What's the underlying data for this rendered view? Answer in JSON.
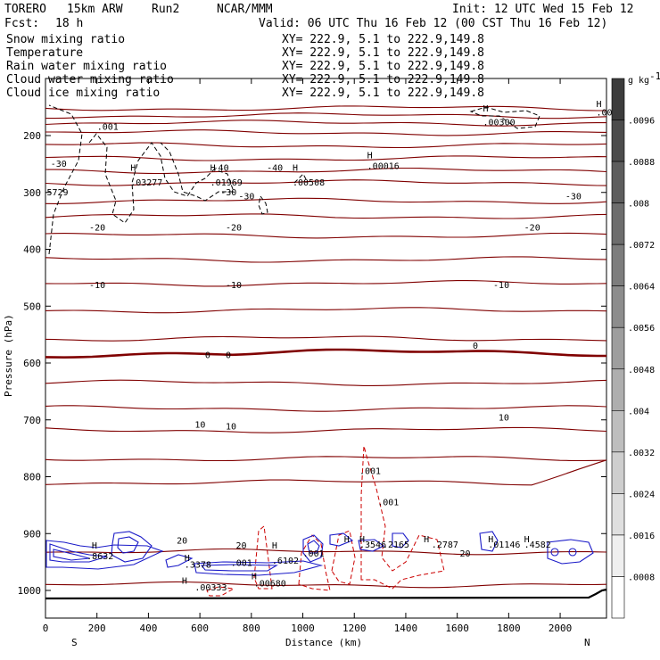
{
  "header": {
    "model": "TORERO",
    "resolution": "15km ARW",
    "run": "Run2",
    "org": "NCAR/MMM",
    "init": "Init: 12 UTC Wed 15 Feb 12",
    "fcst_label": "Fcst:",
    "fcst_value": "18 h",
    "valid": "Valid: 06 UTC Thu 16 Feb 12 (00 CST Thu 16 Feb 12)"
  },
  "colors": {
    "snow": "#000000",
    "temperature": "#cc0000",
    "rain": "#cc0000",
    "cloud_water": "#1a1ac8",
    "cloud_ice": "#000000",
    "isotherm": "#800000"
  },
  "chart_data": {
    "type": "cross-section",
    "xlabel": "Distance (km)",
    "ylabel": "Pressure (hPa)",
    "xlim": [
      0,
      2180
    ],
    "ylim": [
      1050,
      140
    ],
    "x_ticks": [
      0,
      200,
      400,
      600,
      800,
      1000,
      1200,
      1400,
      1600,
      1800,
      2000
    ],
    "y_ticks": [
      200,
      300,
      400,
      500,
      600,
      700,
      800,
      900,
      1000
    ],
    "end_labels": {
      "left": "S",
      "right": "N"
    },
    "legend": [
      {
        "name": "Snow mixing ratio",
        "xy": "XY= 222.9,  5.1 to 222.9,149.8",
        "color": "#000000"
      },
      {
        "name": "Temperature",
        "xy": "XY= 222.9,  5.1 to 222.9,149.8",
        "color": "#cc0000"
      },
      {
        "name": "Rain water mixing ratio",
        "xy": "XY= 222.9,  5.1 to 222.9,149.8",
        "color": "#cc0000"
      },
      {
        "name": "Cloud water mixing ratio",
        "xy": "XY= 222.9,  5.1 to 222.9,149.8",
        "color": "#1a1ac8"
      },
      {
        "name": "Cloud ice mixing ratio",
        "xy": "XY= 222.9,  5.1 to 222.9,149.8",
        "color": "#000000"
      }
    ],
    "colorbar": {
      "unit": "g kg",
      "unit_exp": "-1",
      "labels": [
        ".0096",
        ".0088",
        ".008",
        ".0072",
        ".0064",
        ".0056",
        ".0048",
        ".004",
        ".0032",
        ".0024",
        ".0016",
        ".0008"
      ]
    },
    "isotherms": [
      {
        "p": 152,
        "label": ""
      },
      {
        "p": 165,
        "label": ""
      },
      {
        "p": 178,
        "label": ""
      },
      {
        "p": 195,
        "label": ""
      },
      {
        "p": 217,
        "label": ""
      },
      {
        "p": 240,
        "label": ""
      },
      {
        "p": 262,
        "label": "-40"
      },
      {
        "p": 283,
        "label": ""
      },
      {
        "p": 315,
        "label": "-30"
      },
      {
        "p": 342,
        "label": ""
      },
      {
        "p": 376,
        "label": "-20"
      },
      {
        "p": 418,
        "label": ""
      },
      {
        "p": 460,
        "label": "-10"
      },
      {
        "p": 507,
        "label": ""
      },
      {
        "p": 557,
        "label": ""
      },
      {
        "p": 587,
        "label": "0"
      },
      {
        "p": 635,
        "label": ""
      },
      {
        "p": 680,
        "label": "10"
      },
      {
        "p": 718,
        "label": "10"
      },
      {
        "p": 768,
        "label": ""
      },
      {
        "p": 810,
        "label": ""
      },
      {
        "p": 932,
        "label": "20"
      },
      {
        "p": 990,
        "label": ""
      }
    ],
    "labels": [
      {
        "x": 20,
        "p": 255,
        "t": "-30"
      },
      {
        "x": 2020,
        "p": 312,
        "t": "-30"
      },
      {
        "x": 680,
        "p": 305,
        "t": "-30"
      },
      {
        "x": 750,
        "p": 312,
        "t": "-30"
      },
      {
        "x": 650,
        "p": 262,
        "t": "-40"
      },
      {
        "x": 860,
        "p": 262,
        "t": "-40"
      },
      {
        "x": 170,
        "p": 367,
        "t": "-20"
      },
      {
        "x": 700,
        "p": 367,
        "t": "-20"
      },
      {
        "x": 1860,
        "p": 367,
        "t": "-20"
      },
      {
        "x": 170,
        "p": 468,
        "t": "-10"
      },
      {
        "x": 700,
        "p": 468,
        "t": "-10"
      },
      {
        "x": 1740,
        "p": 468,
        "t": "-10"
      },
      {
        "x": 620,
        "p": 591,
        "t": "0"
      },
      {
        "x": 700,
        "p": 591,
        "t": "0"
      },
      {
        "x": 1660,
        "p": 575,
        "t": "0"
      },
      {
        "x": 580,
        "p": 714,
        "t": "10"
      },
      {
        "x": 700,
        "p": 717,
        "t": "10"
      },
      {
        "x": 1760,
        "p": 701,
        "t": "10"
      },
      {
        "x": 510,
        "p": 918,
        "t": "20"
      },
      {
        "x": 740,
        "p": 926,
        "t": "20"
      },
      {
        "x": 1610,
        "p": 940,
        "t": "20"
      },
      {
        "x": 200,
        "p": 190,
        "t": ".001"
      },
      {
        "x": 1250,
        "p": 259,
        "t": ".00016"
      },
      {
        "x": 1700,
        "p": 182,
        "t": ".00300"
      },
      {
        "x": 2140,
        "p": 165,
        "t": ".001"
      },
      {
        "x": 330,
        "p": 288,
        "t": ".03277"
      },
      {
        "x": 640,
        "p": 288,
        "t": ".01969"
      },
      {
        "x": 960,
        "p": 288,
        "t": ".00508"
      },
      {
        "x": 5,
        "p": 305,
        "t": "5729"
      },
      {
        "x": 1220,
        "p": 795,
        "t": ".001"
      },
      {
        "x": 1290,
        "p": 850,
        "t": ".001"
      },
      {
        "x": 160,
        "p": 945,
        "t": ".8632"
      },
      {
        "x": 540,
        "p": 960,
        "t": ".3378"
      },
      {
        "x": 720,
        "p": 957,
        "t": ".001"
      },
      {
        "x": 880,
        "p": 953,
        "t": ".6102"
      },
      {
        "x": 1000,
        "p": 940,
        "t": ".001"
      },
      {
        "x": 1220,
        "p": 925,
        "t": ".3546"
      },
      {
        "x": 1310,
        "p": 925,
        "t": ".2165"
      },
      {
        "x": 1500,
        "p": 925,
        "t": ".2787"
      },
      {
        "x": 1720,
        "p": 925,
        "t": ".01146"
      },
      {
        "x": 1860,
        "p": 925,
        "t": ".4582"
      },
      {
        "x": 580,
        "p": 1000,
        "t": ".00333"
      },
      {
        "x": 810,
        "p": 993,
        "t": ".00680"
      }
    ]
  }
}
